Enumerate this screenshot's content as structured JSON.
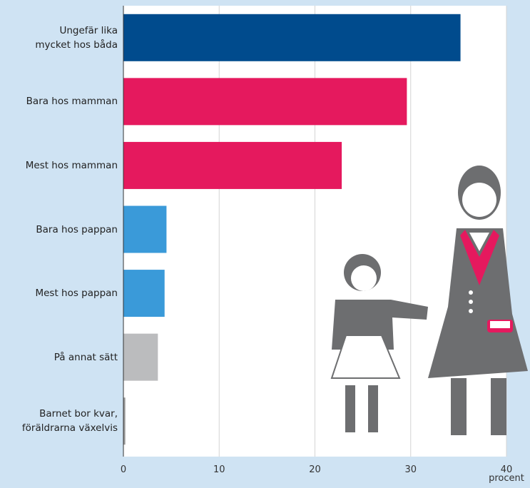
{
  "chart_data": {
    "type": "bar",
    "orientation": "horizontal",
    "categories": [
      "Ungefär lika\nmycket hos båda",
      "Bara hos mamman",
      "Mest hos mamman",
      "Bara hos pappan",
      "Mest hos pappan",
      "På annat sätt",
      "Barnet bor kvar,\nföräldrarna växelvis"
    ],
    "values": [
      35.2,
      29.6,
      22.8,
      4.5,
      4.3,
      3.6,
      0.2
    ],
    "colors": [
      "#004b8d",
      "#e5195e",
      "#e5195e",
      "#3a9ad9",
      "#3a9ad9",
      "#bbbcbe",
      "#9a9a9a"
    ],
    "xlim": [
      0,
      40
    ],
    "xticks": [
      0,
      10,
      20,
      30,
      40
    ],
    "xlabel": "procent",
    "grid": true
  }
}
